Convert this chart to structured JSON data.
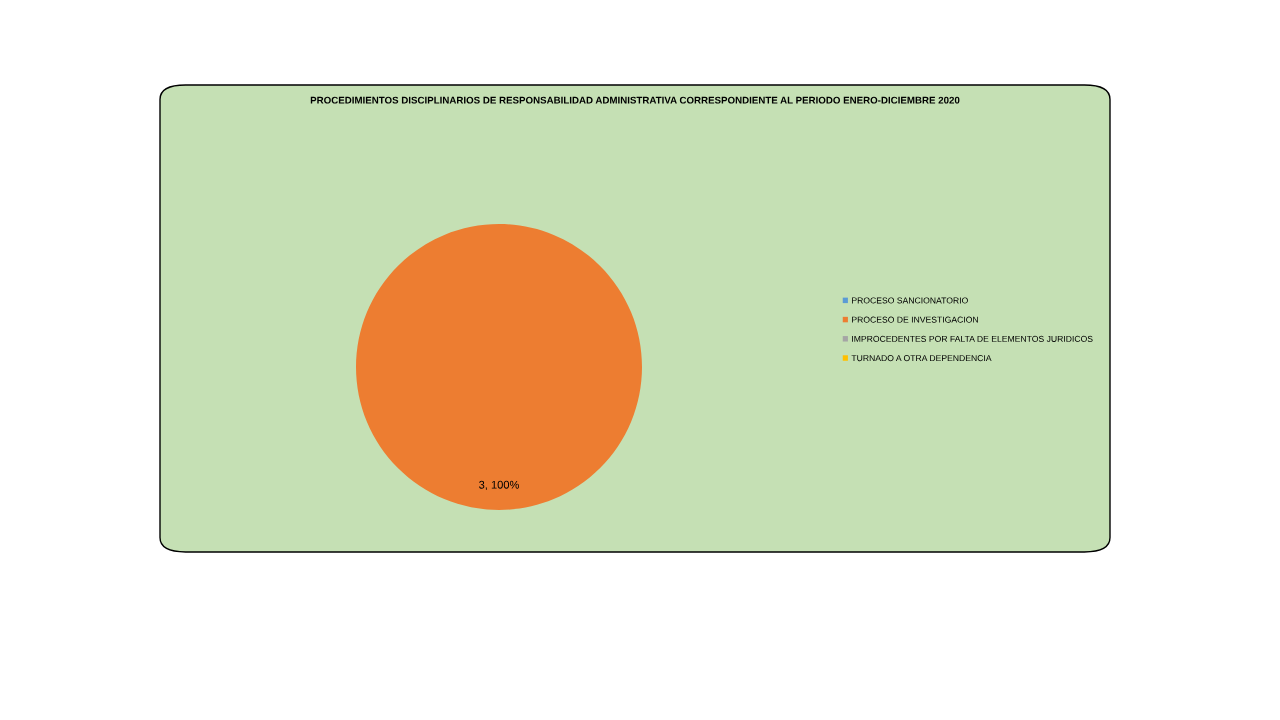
{
  "chart_data": {
    "type": "pie",
    "title": "PROCEDIMIENTOS DISCIPLINARIOS DE RESPONSABILIDAD ADMINISTRATIVA CORRESPONDIENTE AL PERIODO ENERO-DICIEMBRE 2020",
    "categories": [
      "PROCESO SANCIONATORIO",
      "PROCESO DE INVESTIGACION",
      "IMPROCEDENTES POR FALTA DE ELEMENTOS JURIDICOS",
      "TURNADO A OTRA DEPENDENCIA"
    ],
    "values": [
      0,
      3,
      0,
      0
    ],
    "colors": [
      "#5b9bd5",
      "#ed7d31",
      "#a5a5a5",
      "#ffc000"
    ],
    "value_labels": [
      null,
      "3, 100%",
      null,
      null
    ],
    "legend": "right"
  }
}
